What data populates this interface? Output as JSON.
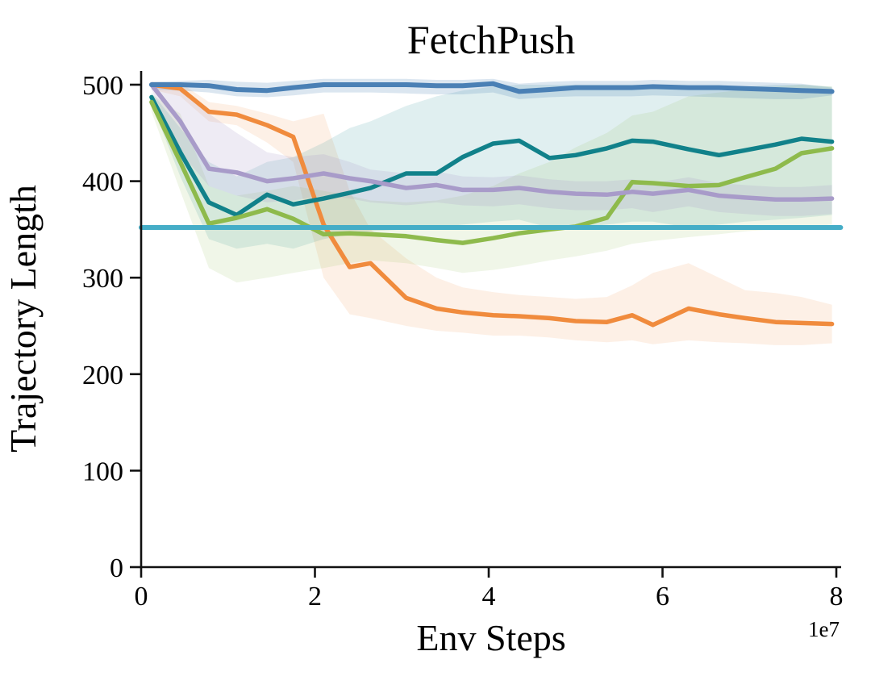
{
  "chart_data": {
    "type": "line",
    "title": "FetchPush",
    "xlabel": "Env Steps",
    "ylabel": "Trajectory Length",
    "x_offset_label": "1e7",
    "xlim": [
      0,
      8
    ],
    "ylim": [
      0,
      500
    ],
    "xticks": [
      0,
      2,
      4,
      6,
      8
    ],
    "yticks": [
      0,
      100,
      200,
      300,
      400,
      500
    ],
    "grid": false,
    "legend": "none",
    "x_units": "1e7 env steps",
    "x": [
      0.12,
      0.45,
      0.78,
      1.1,
      1.45,
      1.75,
      2.1,
      2.4,
      2.64,
      3.05,
      3.4,
      3.7,
      4.05,
      4.35,
      4.7,
      5.0,
      5.36,
      5.65,
      5.89,
      6.3,
      6.65,
      6.95,
      7.3,
      7.6,
      7.95
    ],
    "series": [
      {
        "name": "orange-line",
        "color": "#f08b3d",
        "band_alpha": 0.13,
        "line_width": 5.5,
        "values": [
          500,
          496,
          472,
          469,
          458,
          446,
          355,
          311,
          315,
          279,
          268,
          264,
          261,
          260,
          258,
          255,
          254,
          261,
          251,
          268,
          262,
          258,
          254,
          253,
          252
        ],
        "band_lower": [
          495,
          488,
          462,
          458,
          440,
          420,
          300,
          262,
          258,
          250,
          245,
          243,
          240,
          240,
          238,
          235,
          233,
          235,
          231,
          235,
          233,
          232,
          230,
          230,
          232
        ],
        "band_upper": [
          503,
          502,
          482,
          478,
          470,
          462,
          470,
          390,
          350,
          320,
          300,
          290,
          285,
          282,
          280,
          278,
          280,
          292,
          305,
          315,
          300,
          287,
          284,
          280,
          272
        ]
      },
      {
        "name": "teal-line",
        "color": "#11818a",
        "band_alpha": 0.13,
        "line_width": 5.5,
        "values": [
          487,
          430,
          378,
          365,
          386,
          376,
          382,
          388,
          393,
          408,
          408,
          425,
          439,
          442,
          424,
          427,
          434,
          442,
          441,
          433,
          427,
          432,
          438,
          444,
          441
        ],
        "band_lower": [
          480,
          405,
          340,
          330,
          335,
          330,
          340,
          345,
          348,
          350,
          352,
          355,
          358,
          360,
          352,
          352,
          355,
          358,
          358,
          352,
          355,
          358,
          360,
          362,
          365
        ],
        "band_upper": [
          492,
          455,
          420,
          405,
          420,
          425,
          440,
          455,
          462,
          478,
          488,
          494,
          498,
          500,
          500,
          500,
          500,
          500,
          500,
          498,
          497,
          498,
          500,
          500,
          498
        ]
      },
      {
        "name": "green-line",
        "color": "#8eba4c",
        "band_alpha": 0.13,
        "line_width": 5.5,
        "values": [
          482,
          420,
          356,
          362,
          371,
          361,
          345,
          346,
          345,
          343,
          339,
          336,
          341,
          346,
          350,
          353,
          362,
          399,
          398,
          395,
          396,
          404,
          413,
          429,
          434
        ],
        "band_lower": [
          472,
          390,
          310,
          295,
          300,
          305,
          310,
          315,
          318,
          315,
          310,
          305,
          308,
          312,
          318,
          322,
          328,
          335,
          338,
          342,
          345,
          348,
          350,
          352,
          355
        ],
        "band_upper": [
          490,
          470,
          395,
          385,
          390,
          395,
          390,
          385,
          380,
          378,
          380,
          385,
          395,
          408,
          420,
          435,
          450,
          468,
          472,
          488,
          492,
          495,
          498,
          500,
          498
        ]
      },
      {
        "name": "purple-line",
        "color": "#a89bc9",
        "band_alpha": 0.2,
        "line_width": 5.5,
        "values": [
          500,
          462,
          413,
          409,
          400,
          403,
          408,
          403,
          400,
          393,
          396,
          391,
          391,
          393,
          389,
          387,
          386,
          389,
          387,
          391,
          385,
          383,
          381,
          381,
          382
        ],
        "band_lower": [
          495,
          430,
          395,
          385,
          378,
          380,
          385,
          382,
          378,
          375,
          378,
          375,
          374,
          376,
          372,
          370,
          370,
          372,
          368,
          374,
          368,
          366,
          364,
          364,
          366
        ],
        "band_upper": [
          503,
          495,
          470,
          450,
          430,
          425,
          428,
          420,
          412,
          408,
          410,
          405,
          404,
          406,
          402,
          400,
          400,
          402,
          398,
          404,
          398,
          396,
          394,
          394,
          396
        ]
      },
      {
        "name": "blue-line",
        "color": "#4a80b5",
        "band_alpha": 0.2,
        "line_width": 6,
        "values": [
          500,
          500,
          499,
          495,
          494,
          497,
          500,
          500,
          500,
          500,
          499,
          499,
          501,
          493,
          495,
          497,
          497,
          497,
          498,
          497,
          497,
          496,
          495,
          494,
          493
        ],
        "band_lower": [
          495,
          494,
          492,
          488,
          487,
          489,
          492,
          492,
          492,
          491,
          490,
          490,
          492,
          485,
          487,
          488,
          488,
          488,
          489,
          488,
          487,
          486,
          485,
          485,
          489
        ],
        "band_upper": [
          503,
          504,
          505,
          503,
          502,
          504,
          506,
          506,
          506,
          506,
          505,
          505,
          506,
          501,
          503,
          504,
          504,
          504,
          505,
          504,
          504,
          503,
          502,
          501,
          497
        ]
      },
      {
        "name": "cyan-baseline",
        "color": "#45adc7",
        "line_width": 6,
        "x": [
          0.0,
          8.05
        ],
        "values": [
          352,
          352
        ]
      }
    ]
  }
}
